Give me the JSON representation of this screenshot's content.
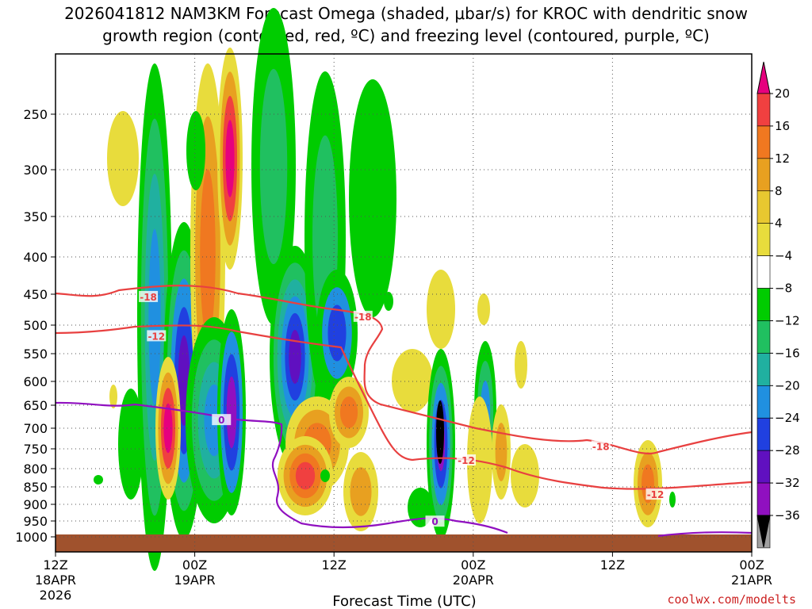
{
  "chart_data": {
    "type": "heatmap",
    "title_line1": "2026041812 NAM3KM Forecast Omega (shaded, μbar/s) for KROC with dendritic snow",
    "title_line2": "growth region (contoured, red, ºC) and freezing level (contoured, purple, ºC)",
    "xlabel": "Forecast Time (UTC)",
    "credit": "coolwx.com/modelts",
    "x_ticks": [
      {
        "hours": 0,
        "label": "12Z",
        "sub": "18APR",
        "sub2": "2026"
      },
      {
        "hours": 12,
        "label": "00Z",
        "sub": "19APR",
        "sub2": ""
      },
      {
        "hours": 24,
        "label": "12Z",
        "sub": "",
        "sub2": ""
      },
      {
        "hours": 36,
        "label": "00Z",
        "sub": "20APR",
        "sub2": ""
      },
      {
        "hours": 48,
        "label": "12Z",
        "sub": "",
        "sub2": ""
      },
      {
        "hours": 60,
        "label": "00Z",
        "sub": "21APR",
        "sub2": ""
      }
    ],
    "y_ticks": [
      "250",
      "300",
      "350",
      "400",
      "450",
      "500",
      "550",
      "600",
      "650",
      "700",
      "750",
      "800",
      "850",
      "900",
      "950",
      "1000"
    ],
    "y_values": [
      250,
      300,
      350,
      400,
      450,
      500,
      550,
      600,
      650,
      700,
      750,
      800,
      850,
      900,
      950,
      1000
    ],
    "colorbar": {
      "labels": [
        "20",
        "16",
        "12",
        "8",
        "4",
        "−4",
        "−8",
        "−12",
        "−16",
        "−20",
        "−24",
        "−28",
        "−32",
        "−36"
      ],
      "colors": [
        "#e6007e",
        "#f04040",
        "#f07820",
        "#e8a020",
        "#e8c830",
        "#e8dc3c",
        "#ffffff",
        "#00cc00",
        "#20c060",
        "#20b0a0",
        "#2090e0",
        "#2040e0",
        "#6010c0",
        "#9010c0",
        "#a0a0a0",
        "#000000"
      ]
    },
    "contour_labels": [
      {
        "text": "-18",
        "color": "#e84040",
        "hours": 8.0,
        "p": 455
      },
      {
        "text": "-12",
        "color": "#e84040",
        "hours": 8.7,
        "p": 520
      },
      {
        "text": "-18",
        "color": "#e84040",
        "hours": 26.5,
        "p": 487
      },
      {
        "text": "0",
        "color": "#9010c0",
        "hours": 14.3,
        "p": 683
      },
      {
        "text": "-18",
        "color": "#e84040",
        "hours": 47.0,
        "p": 745
      },
      {
        "text": "-12",
        "color": "#e84040",
        "hours": 35.4,
        "p": 780
      },
      {
        "text": "-12",
        "color": "#e84040",
        "hours": 51.7,
        "p": 873
      },
      {
        "text": "0",
        "color": "#9010c0",
        "hours": 32.7,
        "p": 953
      }
    ]
  }
}
